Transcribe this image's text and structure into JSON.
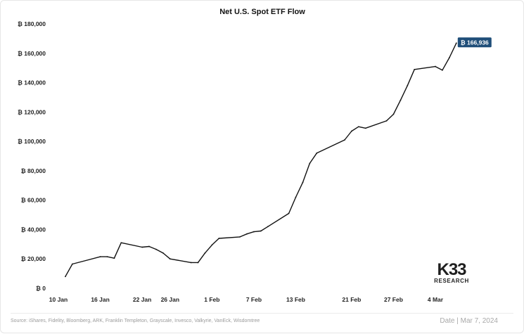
{
  "chart_data": {
    "type": "line",
    "title": "Net U.S. Spot ETF Flow",
    "xlabel": "",
    "ylabel": "",
    "currency_symbol": "₿",
    "ylim": [
      0,
      180000
    ],
    "y_ticks": [
      "₿ 0",
      "₿ 20,000",
      "₿ 40,000",
      "₿ 60,000",
      "₿ 80,000",
      "₿ 100,000",
      "₿ 120,000",
      "₿ 140,000",
      "₿ 160,000",
      "₿ 180,000"
    ],
    "y_tick_values": [
      0,
      20000,
      40000,
      60000,
      80000,
      100000,
      120000,
      140000,
      160000,
      180000
    ],
    "x_ticks": [
      "10 Jan",
      "16 Jan",
      "22 Jan",
      "26 Jan",
      "1 Feb",
      "7 Feb",
      "13 Feb",
      "21 Feb",
      "27 Feb",
      "4 Mar"
    ],
    "x_tick_dates": [
      "2024-01-10",
      "2024-01-16",
      "2024-01-22",
      "2024-01-26",
      "2024-02-01",
      "2024-02-07",
      "2024-02-13",
      "2024-02-21",
      "2024-02-27",
      "2024-03-04"
    ],
    "grid": false,
    "line_color": "#111111",
    "last_label": "₿ 166,936",
    "last_label_color": "#1f4e79",
    "series": [
      {
        "x": [
          "2024-01-11",
          "2024-01-12",
          "2024-01-16",
          "2024-01-17",
          "2024-01-18",
          "2024-01-19",
          "2024-01-22",
          "2024-01-23",
          "2024-01-24",
          "2024-01-25",
          "2024-01-26",
          "2024-01-29",
          "2024-01-30",
          "2024-01-31",
          "2024-02-01",
          "2024-02-02",
          "2024-02-05",
          "2024-02-06",
          "2024-02-07",
          "2024-02-08",
          "2024-02-09",
          "2024-02-12",
          "2024-02-13",
          "2024-02-14",
          "2024-02-15",
          "2024-02-16",
          "2024-02-20",
          "2024-02-21",
          "2024-02-22",
          "2024-02-23",
          "2024-02-26",
          "2024-02-27",
          "2024-02-28",
          "2024-02-29",
          "2024-03-01",
          "2024-03-04",
          "2024-03-05",
          "2024-03-06",
          "2024-03-07"
        ],
        "values": [
          8000,
          16500,
          21500,
          21500,
          20500,
          31000,
          28000,
          28500,
          26500,
          24000,
          20000,
          17500,
          17500,
          24000,
          29500,
          34000,
          35000,
          37000,
          38500,
          39000,
          42000,
          51000,
          62000,
          72000,
          85000,
          92000,
          101000,
          107000,
          110000,
          109000,
          114000,
          118500,
          128000,
          138000,
          149000,
          151000,
          148500,
          157000,
          166936
        ]
      }
    ]
  },
  "footer": {
    "source": "Source:  iShares, Fidelity, Bloomberg, ARK, Franklin Templeton, Grayscale, Invesco, Valkyrie, VanEck, Wisdomtree",
    "date": "Date | Mar 7, 2024"
  },
  "logo": {
    "mark": "K33",
    "sub": "RESEARCH"
  }
}
